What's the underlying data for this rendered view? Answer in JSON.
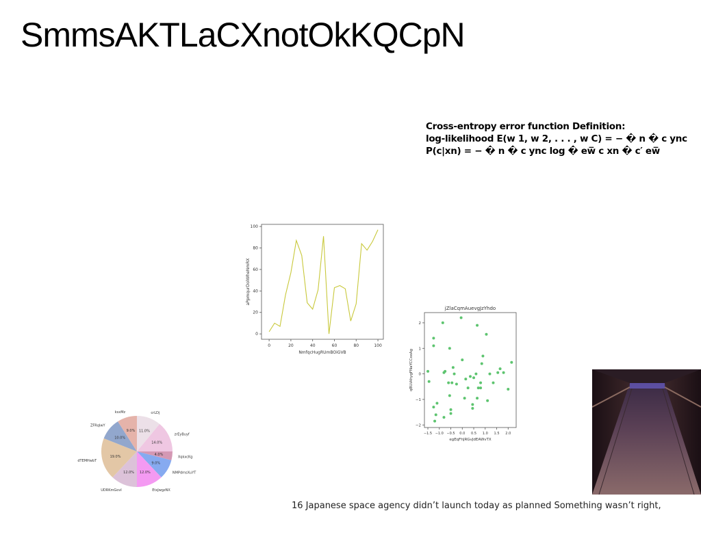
{
  "slide": {
    "title": "SmmsAKTLaCXnotOkKQCpN",
    "equation_lines": [
      "Cross-entropy error function Definition:",
      "log-likelihood E(w 1, w 2, . . . , w C) = − � n � c ync",
      "P(c|xn) = − � n � c ync log � ew̅ c xn � c′ ew̅"
    ],
    "caption": "16 Japanese space agency didn’t launch today as planned Something wasn’t right,"
  },
  "chart_data": [
    {
      "type": "line",
      "title": "",
      "xlabel": "NmfqcHugRUmBOiGVB",
      "ylabel": "aPpmqurDolWheNmRX",
      "x": [
        0,
        5,
        10,
        15,
        20,
        25,
        30,
        35,
        40,
        45,
        50,
        55,
        60,
        65,
        70,
        75,
        80,
        85,
        90,
        95,
        100
      ],
      "series": [
        {
          "values": [
            2,
            10,
            7,
            36,
            57,
            87,
            73,
            29,
            23,
            41,
            91,
            0,
            43,
            45,
            42,
            12,
            28,
            84,
            78,
            86,
            97
          ]
        }
      ],
      "xticks": [
        0,
        20,
        40,
        60,
        80,
        100
      ],
      "yticks": [
        0,
        20,
        40,
        60,
        80,
        100
      ],
      "xlim": [
        -7,
        105
      ],
      "ylim": [
        -5,
        102
      ],
      "color": "#c8c83a"
    },
    {
      "type": "scatter",
      "title": "jZlaCqmAuevgJzYhdo",
      "xlabel": "egEqFhJRGvJdEAWvTX",
      "ylabel": "qBUiAhygFNaYCCxeAg",
      "points": [
        [
          -1.5,
          0.1
        ],
        [
          -1.45,
          -0.3
        ],
        [
          -1.25,
          1.4
        ],
        [
          -1.25,
          1.1
        ],
        [
          -1.25,
          -1.3
        ],
        [
          -1.2,
          -1.85
        ],
        [
          -1.15,
          -1.6
        ],
        [
          -1.1,
          -1.15
        ],
        [
          -0.85,
          2.0
        ],
        [
          -0.8,
          0.05
        ],
        [
          -0.75,
          0.1
        ],
        [
          -0.8,
          -1.7
        ],
        [
          -0.6,
          -0.35
        ],
        [
          -0.55,
          1.0
        ],
        [
          -0.55,
          -0.85
        ],
        [
          -0.5,
          -1.4
        ],
        [
          -0.5,
          -1.55
        ],
        [
          -0.45,
          -0.35
        ],
        [
          -0.4,
          0.25
        ],
        [
          -0.35,
          0.0
        ],
        [
          -0.25,
          -0.4
        ],
        [
          -0.05,
          2.2
        ],
        [
          0.0,
          0.55
        ],
        [
          0.1,
          -0.95
        ],
        [
          0.15,
          -0.2
        ],
        [
          0.25,
          -0.55
        ],
        [
          0.35,
          -0.1
        ],
        [
          0.45,
          -1.2
        ],
        [
          0.45,
          -1.35
        ],
        [
          0.5,
          -0.15
        ],
        [
          0.6,
          0.0
        ],
        [
          0.65,
          1.9
        ],
        [
          0.65,
          -0.95
        ],
        [
          0.7,
          -0.55
        ],
        [
          0.8,
          -0.35
        ],
        [
          0.8,
          -0.55
        ],
        [
          0.85,
          0.4
        ],
        [
          0.9,
          0.7
        ],
        [
          1.05,
          1.55
        ],
        [
          1.1,
          -1.05
        ],
        [
          1.2,
          0.0
        ],
        [
          1.35,
          -0.35
        ],
        [
          1.55,
          0.05
        ],
        [
          1.65,
          0.2
        ],
        [
          1.8,
          0.05
        ],
        [
          2.0,
          -0.6
        ],
        [
          2.15,
          0.45
        ]
      ],
      "xticks": [
        -1.5,
        -1.0,
        -0.5,
        0.0,
        0.5,
        1.0,
        1.5,
        2.0
      ],
      "yticks": [
        -2,
        -1,
        0,
        1,
        2
      ],
      "xlim": [
        -1.65,
        2.35
      ],
      "ylim": [
        -2.1,
        2.4
      ],
      "color": "#5dc46f"
    },
    {
      "type": "pie",
      "title": "",
      "slices": [
        {
          "label": "crLDj",
          "value": 11.0,
          "pct": "11.0%",
          "color": "#ece0e8"
        },
        {
          "label": "zrEyBuyf",
          "value": 14.0,
          "pct": "14.0%",
          "color": "#efc7e2"
        },
        {
          "label": "XqkxcKg",
          "value": 4.0,
          "pct": "4.0%",
          "color": "#d498b4"
        },
        {
          "label": "NMPdmsXuYT",
          "value": 9.0,
          "pct": "9.0%",
          "color": "#86aaf0"
        },
        {
          "label": "EtxJwgzNX",
          "value": 12.0,
          "pct": "12.0%",
          "color": "#f49af2"
        },
        {
          "label": "UDRKmGovI",
          "value": 12.0,
          "pct": "12.0%",
          "color": "#dcc2d9"
        },
        {
          "label": "dTEMHwbT",
          "value": 19.0,
          "pct": "19.0%",
          "color": "#e3c7a6"
        },
        {
          "label": "ZFRqIwY",
          "value": 10.0,
          "pct": "10.0%",
          "color": "#92a7cd"
        },
        {
          "label": "ksxMz",
          "value": 9.0,
          "pct": "9.0%",
          "color": "#e5b3aa"
        }
      ]
    }
  ]
}
